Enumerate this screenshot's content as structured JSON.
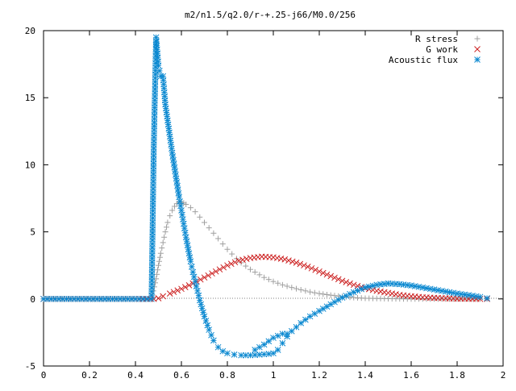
{
  "chart_data": {
    "type": "scatter",
    "title": "m2/n1.5/q2.0/r-+.25-j66/M0.0/256",
    "xlabel": "",
    "ylabel": "",
    "xlim": [
      0,
      2
    ],
    "ylim": [
      -5,
      20
    ],
    "xticks": [
      0,
      0.2,
      0.4,
      0.6,
      0.8,
      1,
      1.2,
      1.4,
      1.6,
      1.8,
      2
    ],
    "xtick_labels": [
      "0",
      "0.2",
      "0.4",
      "0.6",
      "0.8",
      "1",
      "1.2",
      "1.4",
      "1.6",
      "1.8",
      "2"
    ],
    "yticks": [
      -5,
      0,
      5,
      10,
      15,
      20
    ],
    "ytick_labels": [
      "-5",
      "0",
      "5",
      "10",
      "15",
      "20"
    ],
    "grid": false,
    "legend_position": "top-right",
    "series": [
      {
        "name": "R stress",
        "marker": "plus",
        "color": "#a0a0a0",
        "points": [
          [
            0.0,
            0
          ],
          [
            0.1,
            0
          ],
          [
            0.2,
            0
          ],
          [
            0.3,
            0
          ],
          [
            0.4,
            0
          ],
          [
            0.47,
            0
          ],
          [
            0.49,
            1.5
          ],
          [
            0.5,
            2.5
          ],
          [
            0.51,
            3.4
          ],
          [
            0.52,
            4.2
          ],
          [
            0.53,
            5.0
          ],
          [
            0.54,
            5.7
          ],
          [
            0.55,
            6.2
          ],
          [
            0.56,
            6.6
          ],
          [
            0.57,
            6.9
          ],
          [
            0.58,
            7.1
          ],
          [
            0.59,
            7.2
          ],
          [
            0.6,
            7.2
          ],
          [
            0.61,
            7.15
          ],
          [
            0.62,
            7.05
          ],
          [
            0.64,
            6.8
          ],
          [
            0.66,
            6.5
          ],
          [
            0.68,
            6.1
          ],
          [
            0.7,
            5.7
          ],
          [
            0.72,
            5.3
          ],
          [
            0.74,
            4.9
          ],
          [
            0.76,
            4.5
          ],
          [
            0.78,
            4.1
          ],
          [
            0.8,
            3.7
          ],
          [
            0.82,
            3.35
          ],
          [
            0.84,
            3.0
          ],
          [
            0.86,
            2.7
          ],
          [
            0.88,
            2.45
          ],
          [
            0.9,
            2.2
          ],
          [
            0.92,
            2.0
          ],
          [
            0.94,
            1.8
          ],
          [
            0.96,
            1.6
          ],
          [
            0.98,
            1.45
          ],
          [
            1.0,
            1.3
          ],
          [
            1.04,
            1.05
          ],
          [
            1.08,
            0.85
          ],
          [
            1.12,
            0.68
          ],
          [
            1.16,
            0.52
          ],
          [
            1.2,
            0.4
          ],
          [
            1.25,
            0.28
          ],
          [
            1.3,
            0.18
          ],
          [
            1.35,
            0.1
          ],
          [
            1.4,
            0.05
          ],
          [
            1.5,
            0.02
          ],
          [
            1.6,
            0
          ],
          [
            1.7,
            0
          ],
          [
            1.8,
            0
          ],
          [
            1.9,
            0
          ],
          [
            1.93,
            0
          ]
        ]
      },
      {
        "name": "G work",
        "marker": "cross",
        "color": "#cc2020",
        "points": [
          [
            0.0,
            0
          ],
          [
            0.1,
            0
          ],
          [
            0.2,
            0
          ],
          [
            0.3,
            0
          ],
          [
            0.4,
            0
          ],
          [
            0.48,
            0
          ],
          [
            0.5,
            0.05
          ],
          [
            0.52,
            0.2
          ],
          [
            0.55,
            0.4
          ],
          [
            0.6,
            0.75
          ],
          [
            0.65,
            1.15
          ],
          [
            0.7,
            1.6
          ],
          [
            0.75,
            2.05
          ],
          [
            0.8,
            2.5
          ],
          [
            0.85,
            2.85
          ],
          [
            0.9,
            3.05
          ],
          [
            0.95,
            3.15
          ],
          [
            1.0,
            3.1
          ],
          [
            1.05,
            2.95
          ],
          [
            1.1,
            2.7
          ],
          [
            1.15,
            2.4
          ],
          [
            1.2,
            2.05
          ],
          [
            1.25,
            1.7
          ],
          [
            1.3,
            1.35
          ],
          [
            1.35,
            1.05
          ],
          [
            1.4,
            0.8
          ],
          [
            1.45,
            0.6
          ],
          [
            1.5,
            0.45
          ],
          [
            1.55,
            0.3
          ],
          [
            1.6,
            0.2
          ],
          [
            1.65,
            0.12
          ],
          [
            1.7,
            0.08
          ],
          [
            1.75,
            0.05
          ],
          [
            1.8,
            0.02
          ],
          [
            1.85,
            0.01
          ],
          [
            1.9,
            0
          ],
          [
            1.93,
            0
          ]
        ]
      },
      {
        "name": "Acoustic flux",
        "marker": "star",
        "color": "#0a88d0",
        "points": [
          [
            0.0,
            0
          ],
          [
            0.1,
            0
          ],
          [
            0.2,
            0
          ],
          [
            0.3,
            0
          ],
          [
            0.4,
            0
          ],
          [
            0.47,
            0
          ],
          [
            0.48,
            11.5
          ],
          [
            0.49,
            19.5
          ],
          [
            0.5,
            17.4
          ],
          [
            0.51,
            16.6
          ],
          [
            0.52,
            16.6
          ],
          [
            0.53,
            14.5
          ],
          [
            0.54,
            13.3
          ],
          [
            0.55,
            12.1
          ],
          [
            0.56,
            10.9
          ],
          [
            0.57,
            9.8
          ],
          [
            0.58,
            8.7
          ],
          [
            0.59,
            7.6
          ],
          [
            0.6,
            6.6
          ],
          [
            0.61,
            5.6
          ],
          [
            0.62,
            4.6
          ],
          [
            0.63,
            3.7
          ],
          [
            0.64,
            2.8
          ],
          [
            0.65,
            2.0
          ],
          [
            0.66,
            1.3
          ],
          [
            0.67,
            0.6
          ],
          [
            0.68,
            -0.1
          ],
          [
            0.69,
            -0.7
          ],
          [
            0.7,
            -1.3
          ],
          [
            0.72,
            -2.3
          ],
          [
            0.74,
            -3.1
          ],
          [
            0.76,
            -3.6
          ],
          [
            0.78,
            -3.9
          ],
          [
            0.8,
            -4.05
          ],
          [
            0.83,
            -4.15
          ],
          [
            0.86,
            -4.2
          ],
          [
            0.9,
            -4.2
          ],
          [
            0.94,
            -4.15
          ],
          [
            0.98,
            -4.1
          ],
          [
            1.0,
            -4.05
          ],
          [
            1.02,
            -3.8
          ],
          [
            1.04,
            -3.3
          ],
          [
            1.06,
            -2.8
          ],
          [
            1.08,
            -2.4
          ],
          [
            1.12,
            -1.8
          ],
          [
            1.16,
            -1.3
          ],
          [
            1.2,
            -0.9
          ],
          [
            1.25,
            -0.4
          ],
          [
            1.3,
            0.1
          ],
          [
            1.35,
            0.5
          ],
          [
            1.4,
            0.85
          ],
          [
            1.45,
            1.05
          ],
          [
            1.5,
            1.15
          ],
          [
            1.55,
            1.1
          ],
          [
            1.6,
            1.0
          ],
          [
            1.65,
            0.85
          ],
          [
            1.7,
            0.7
          ],
          [
            1.75,
            0.55
          ],
          [
            1.8,
            0.4
          ],
          [
            1.85,
            0.28
          ],
          [
            1.9,
            0.15
          ],
          [
            1.93,
            0.05
          ],
          [
            0.92,
            -3.8
          ],
          [
            0.96,
            -3.4
          ],
          [
            1.0,
            -2.9
          ],
          [
            1.04,
            -2.6
          ],
          [
            1.06,
            -2.6
          ]
        ]
      }
    ]
  }
}
